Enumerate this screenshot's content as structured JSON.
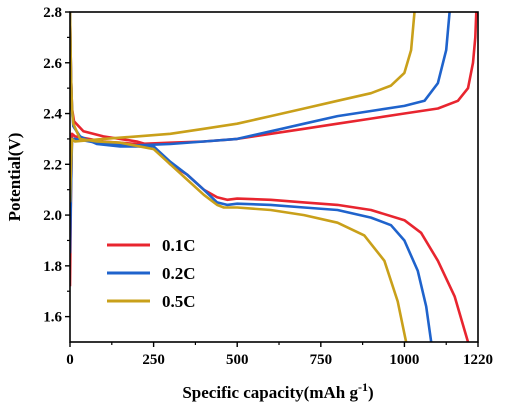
{
  "chart_data": {
    "type": "line",
    "xlabel": "Specific capacity(mAh g",
    "xlabel_sup": "-1",
    "xlabel_close": ")",
    "ylabel": "Potential(V)",
    "xlim": [
      0,
      1220
    ],
    "ylim": [
      1.5,
      2.8
    ],
    "x_ticks": [
      0,
      250,
      500,
      750,
      1000,
      1220
    ],
    "x_tick_labels": [
      "0",
      "250",
      "500",
      "750",
      "1000",
      "1220"
    ],
    "y_ticks": [
      1.6,
      1.8,
      2.0,
      2.2,
      2.4,
      2.6,
      2.8
    ],
    "y_tick_labels": [
      "1.6",
      "1.8",
      "2.0",
      "2.2",
      "2.4",
      "2.6",
      "2.8"
    ],
    "grid": false,
    "legend_position": "bottom-left",
    "series": [
      {
        "name": "0.1C",
        "color": "#e8252f",
        "discharge": [
          [
            0,
            2.8
          ],
          [
            3,
            2.55
          ],
          [
            6,
            2.42
          ],
          [
            12,
            2.37
          ],
          [
            40,
            2.33
          ],
          [
            100,
            2.31
          ],
          [
            200,
            2.29
          ],
          [
            250,
            2.27
          ],
          [
            300,
            2.2
          ],
          [
            350,
            2.16
          ],
          [
            400,
            2.1
          ],
          [
            440,
            2.07
          ],
          [
            470,
            2.06
          ],
          [
            500,
            2.065
          ],
          [
            600,
            2.06
          ],
          [
            700,
            2.05
          ],
          [
            800,
            2.04
          ],
          [
            900,
            2.02
          ],
          [
            1000,
            1.98
          ],
          [
            1050,
            1.93
          ],
          [
            1100,
            1.82
          ],
          [
            1150,
            1.68
          ],
          [
            1190,
            1.5
          ]
        ],
        "charge": [
          [
            0,
            1.72
          ],
          [
            3,
            2.1
          ],
          [
            6,
            2.32
          ],
          [
            15,
            2.31
          ],
          [
            100,
            2.29
          ],
          [
            200,
            2.28
          ],
          [
            300,
            2.285
          ],
          [
            400,
            2.29
          ],
          [
            500,
            2.3
          ],
          [
            600,
            2.32
          ],
          [
            700,
            2.34
          ],
          [
            800,
            2.36
          ],
          [
            900,
            2.38
          ],
          [
            1000,
            2.4
          ],
          [
            1100,
            2.42
          ],
          [
            1160,
            2.45
          ],
          [
            1190,
            2.5
          ],
          [
            1205,
            2.6
          ],
          [
            1212,
            2.7
          ],
          [
            1215,
            2.8
          ]
        ]
      },
      {
        "name": "0.2C",
        "color": "#1f63cc",
        "discharge": [
          [
            0,
            2.8
          ],
          [
            3,
            2.55
          ],
          [
            6,
            2.42
          ],
          [
            10,
            2.35
          ],
          [
            30,
            2.31
          ],
          [
            80,
            2.28
          ],
          [
            150,
            2.27
          ],
          [
            250,
            2.27
          ],
          [
            300,
            2.21
          ],
          [
            350,
            2.16
          ],
          [
            400,
            2.1
          ],
          [
            440,
            2.05
          ],
          [
            470,
            2.04
          ],
          [
            500,
            2.045
          ],
          [
            600,
            2.04
          ],
          [
            700,
            2.03
          ],
          [
            800,
            2.02
          ],
          [
            900,
            1.99
          ],
          [
            960,
            1.96
          ],
          [
            1000,
            1.9
          ],
          [
            1040,
            1.78
          ],
          [
            1065,
            1.64
          ],
          [
            1080,
            1.5
          ]
        ],
        "charge": [
          [
            0,
            1.85
          ],
          [
            3,
            2.1
          ],
          [
            6,
            2.3
          ],
          [
            15,
            2.3
          ],
          [
            100,
            2.28
          ],
          [
            200,
            2.275
          ],
          [
            300,
            2.28
          ],
          [
            400,
            2.29
          ],
          [
            500,
            2.3
          ],
          [
            600,
            2.33
          ],
          [
            700,
            2.36
          ],
          [
            800,
            2.39
          ],
          [
            900,
            2.41
          ],
          [
            1000,
            2.43
          ],
          [
            1060,
            2.45
          ],
          [
            1100,
            2.52
          ],
          [
            1125,
            2.65
          ],
          [
            1135,
            2.8
          ]
        ]
      },
      {
        "name": "0.5C",
        "color": "#c9a01a",
        "discharge": [
          [
            0,
            2.8
          ],
          [
            3,
            2.55
          ],
          [
            6,
            2.42
          ],
          [
            10,
            2.36
          ],
          [
            30,
            2.3
          ],
          [
            80,
            2.29
          ],
          [
            150,
            2.285
          ],
          [
            250,
            2.26
          ],
          [
            300,
            2.2
          ],
          [
            350,
            2.14
          ],
          [
            400,
            2.08
          ],
          [
            440,
            2.04
          ],
          [
            460,
            2.03
          ],
          [
            500,
            2.03
          ],
          [
            600,
            2.02
          ],
          [
            700,
            2.0
          ],
          [
            800,
            1.97
          ],
          [
            880,
            1.92
          ],
          [
            940,
            1.82
          ],
          [
            980,
            1.66
          ],
          [
            1005,
            1.5
          ]
        ],
        "charge": [
          [
            0,
            2.05
          ],
          [
            3,
            2.2
          ],
          [
            6,
            2.3
          ],
          [
            15,
            2.29
          ],
          [
            100,
            2.3
          ],
          [
            200,
            2.31
          ],
          [
            300,
            2.32
          ],
          [
            400,
            2.34
          ],
          [
            500,
            2.36
          ],
          [
            600,
            2.39
          ],
          [
            700,
            2.42
          ],
          [
            800,
            2.45
          ],
          [
            900,
            2.48
          ],
          [
            960,
            2.51
          ],
          [
            1000,
            2.56
          ],
          [
            1020,
            2.65
          ],
          [
            1030,
            2.8
          ]
        ]
      }
    ]
  }
}
